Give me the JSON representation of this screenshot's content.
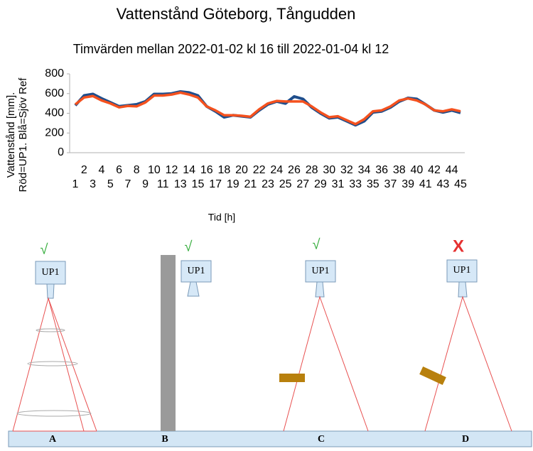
{
  "chart_data": {
    "type": "line",
    "title": "Vattenstånd Göteborg, Tångudden",
    "subtitle": "Timvärden mellan 2022-01-02 kl 16 till 2022-01-04 kl 12",
    "y_label": [
      "Vattenstånd [mm].",
      "Röd=UP1. Blå=Sjöv Ref"
    ],
    "x_label": "Tid [h]",
    "x": [
      1,
      2,
      3,
      4,
      5,
      6,
      7,
      8,
      9,
      10,
      11,
      12,
      13,
      14,
      15,
      16,
      17,
      18,
      19,
      20,
      21,
      22,
      23,
      24,
      25,
      26,
      27,
      28,
      29,
      30,
      31,
      32,
      33,
      34,
      35,
      36,
      37,
      38,
      39,
      40,
      41,
      42,
      43,
      44,
      45
    ],
    "xlim": [
      1,
      45
    ],
    "ylim": [
      0,
      800
    ],
    "yticks": [
      0,
      200,
      400,
      600,
      800
    ],
    "grid": false,
    "series": [
      {
        "name": "Sjöv Ref",
        "color": "#1f4e8c",
        "values": [
          480,
          580,
          595,
          550,
          510,
          470,
          480,
          490,
          520,
          595,
          595,
          600,
          620,
          610,
          580,
          470,
          420,
          360,
          380,
          370,
          360,
          430,
          490,
          520,
          500,
          570,
          545,
          460,
          400,
          350,
          360,
          320,
          280,
          320,
          410,
          420,
          460,
          520,
          555,
          545,
          490,
          430,
          410,
          430,
          405
        ]
      },
      {
        "name": "UP1",
        "color": "#f4511e",
        "values": [
          490,
          560,
          575,
          530,
          500,
          460,
          475,
          470,
          510,
          580,
          580,
          590,
          610,
          590,
          560,
          470,
          430,
          380,
          380,
          375,
          365,
          440,
          500,
          525,
          520,
          520,
          520,
          470,
          410,
          360,
          370,
          330,
          290,
          340,
          420,
          430,
          470,
          530,
          550,
          530,
          490,
          430,
          420,
          440,
          420
        ]
      }
    ]
  },
  "diagram": {
    "panels": [
      {
        "letter": "A",
        "sensor": "UP1",
        "status": "√"
      },
      {
        "letter": "B",
        "sensor": "UP1",
        "status": "√"
      },
      {
        "letter": "C",
        "sensor": "UP1",
        "status": "√"
      },
      {
        "letter": "D",
        "sensor": "UP1",
        "status": "X"
      }
    ]
  }
}
